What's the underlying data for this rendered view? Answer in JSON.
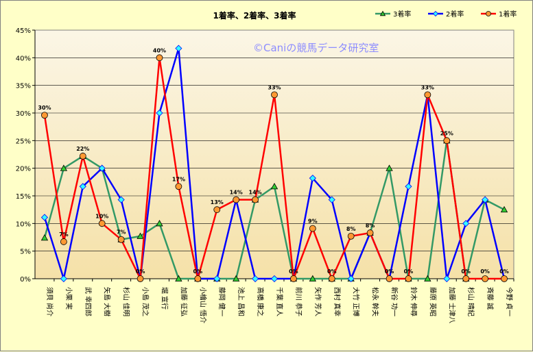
{
  "chart_data": {
    "type": "line",
    "title": "1着率、2着率、3着率",
    "watermark": "©Caniの競馬データ研究室",
    "ylim": [
      0,
      0.45
    ],
    "yticks": [
      "0%",
      "5%",
      "10%",
      "15%",
      "20%",
      "25%",
      "30%",
      "35%",
      "40%",
      "45%"
    ],
    "grid": "horizontal",
    "legend_position": "top-right",
    "background_gradient": [
      "#fbf6e6",
      "#f5e1a8"
    ],
    "categories": [
      "須貝 尚介",
      "小栗 実",
      "武 幸四郎",
      "矢島 大樹",
      "杉山 佳明",
      "小島 茂之",
      "堀 宣行",
      "加藤 征弘",
      "小檜山 悟介",
      "藤岡 健一",
      "池上 昌和",
      "高橋 康之",
      "千葉 直人",
      "前川 恭子",
      "矢作 芳人",
      "西村 真幸",
      "大竹 正博",
      "松永 幹夫",
      "新谷 功一",
      "鈴木 伸尋",
      "藤原 英昭",
      "加藤 士津八",
      "杉山 晴紀",
      "斉藤 誠",
      "今野 貞一"
    ],
    "series": [
      {
        "name": "3着率",
        "color": "#339966",
        "marker": "triangle",
        "marker_fill": "#33cc33",
        "values": [
          0.074,
          0.2,
          0.222,
          0.2,
          0.071,
          0.077,
          0.1,
          0.0,
          0.0,
          0.0,
          0.0,
          0.143,
          0.167,
          0.0,
          0.0,
          0.0,
          0.0,
          0.083,
          0.2,
          0.0,
          0.0,
          0.25,
          0.0,
          0.143,
          0.125
        ]
      },
      {
        "name": "2着率",
        "color": "#0000ff",
        "marker": "diamond",
        "marker_fill": "#33ffff",
        "values": [
          0.111,
          0.0,
          0.167,
          0.2,
          0.143,
          0.0,
          0.3,
          0.417,
          0.0,
          0.0,
          0.143,
          0.0,
          0.0,
          0.0,
          0.182,
          0.143,
          0.0,
          0.083,
          0.0,
          0.167,
          0.333,
          0.0,
          0.1,
          0.143,
          0.0
        ]
      },
      {
        "name": "1着率",
        "color": "#ff0000",
        "marker": "circle",
        "marker_fill": "#ff9933",
        "values": [
          0.296,
          0.067,
          0.222,
          0.1,
          0.071,
          0.0,
          0.4,
          0.167,
          0.0,
          0.125,
          0.143,
          0.143,
          0.333,
          0.0,
          0.091,
          0.0,
          0.077,
          0.083,
          0.0,
          0.0,
          0.333,
          0.25,
          0.0,
          0.0,
          0.0
        ],
        "data_labels": [
          "30%",
          "7%",
          "22%",
          "10%",
          "7%",
          "0%",
          "40%",
          "17%",
          "0%",
          "13%",
          "14%",
          "14%",
          "33%",
          "0%",
          "9%",
          "0%",
          "8%",
          "8%",
          "0%",
          "0%",
          "33%",
          "25%",
          "0%",
          "0%",
          "0%"
        ]
      }
    ],
    "legend_order": [
      "3着率",
      "2着率",
      "1着率"
    ]
  }
}
